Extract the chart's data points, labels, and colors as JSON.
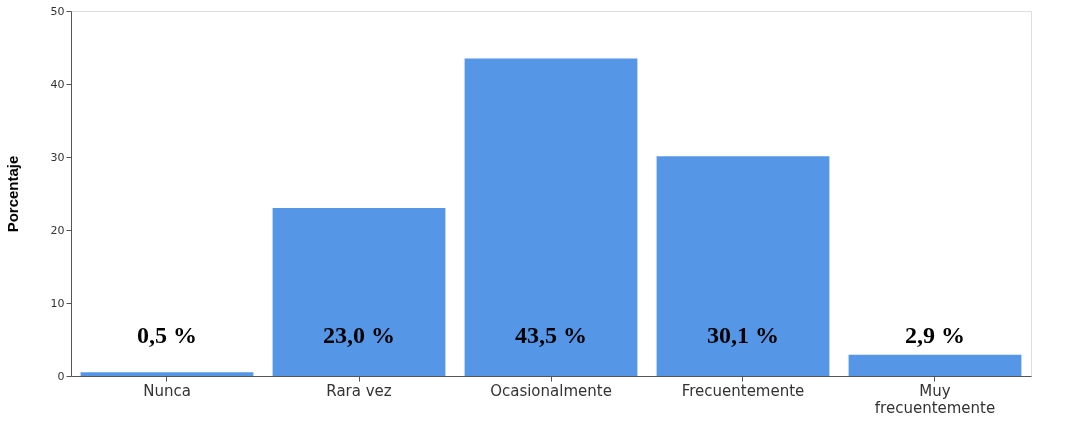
{
  "chart_data": {
    "type": "bar",
    "ylabel": "Porcentaje",
    "categories": [
      "Nunca",
      "Rara vez",
      "Ocasionalmente",
      "Frecuentemente",
      "Muy frecuentemente"
    ],
    "values": [
      0.5,
      23.0,
      43.5,
      30.1,
      2.9
    ],
    "value_labels": [
      "0,5 %",
      "23,0 %",
      "43,5 %",
      "30,1 %",
      "2,9 %"
    ],
    "color": "#5596e6",
    "ylim": [
      0,
      50
    ],
    "yticks": [
      0,
      10,
      20,
      30,
      40,
      50
    ],
    "grid": false
  }
}
